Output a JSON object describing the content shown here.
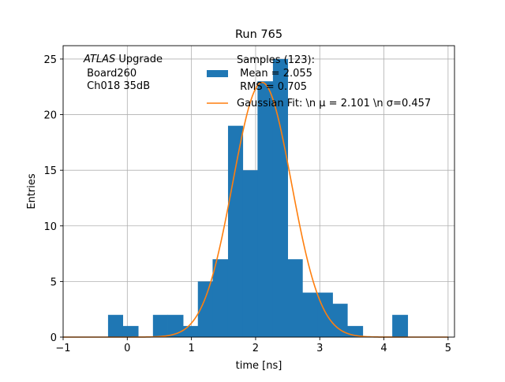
{
  "chart_data": {
    "type": "bar",
    "title": "Run 765",
    "xlabel": "time [ns]",
    "ylabel": "Entries",
    "xlim": [
      -1.0,
      5.1
    ],
    "ylim": [
      0,
      26.2
    ],
    "grid": true,
    "x_ticks": [
      -1,
      0,
      1,
      2,
      3,
      4,
      5
    ],
    "x_tick_labels": [
      "−1",
      "0",
      "1",
      "2",
      "3",
      "4",
      "5"
    ],
    "y_ticks": [
      0,
      5,
      10,
      15,
      20,
      25
    ],
    "y_tick_labels": [
      "0",
      "5",
      "10",
      "15",
      "20",
      "25"
    ],
    "histogram": {
      "color": "#1f77b4",
      "bin_edges": [
        -0.3,
        -0.07,
        0.17,
        0.4,
        0.63,
        0.87,
        1.1,
        1.33,
        1.57,
        1.8,
        2.03,
        2.27,
        2.5,
        2.73,
        2.97,
        3.2,
        3.43,
        3.67,
        3.9,
        4.13,
        4.37
      ],
      "counts": [
        2,
        1,
        0,
        2,
        2,
        1,
        5,
        7,
        19,
        15,
        23,
        25,
        7,
        4,
        4,
        3,
        1,
        0,
        0,
        2
      ]
    },
    "fit": {
      "color": "#ff7f0e",
      "mu": 2.101,
      "sigma": 0.457,
      "amplitude": 22.9,
      "x_range": [
        -1.0,
        5.0
      ]
    },
    "legend": {
      "placement": "top-right",
      "hist_label_lines": [
        "Samples (123):",
        " Mean = 2.055",
        " RMS = 0.705"
      ],
      "fit_label": "Gaussian Fit: \\n μ = 2.101 \\n σ=0.457"
    },
    "annotation": {
      "experiment": "ATLAS",
      "experiment_suffix": " Upgrade",
      "lines": [
        " Board260",
        " Ch018 35dB"
      ]
    }
  }
}
